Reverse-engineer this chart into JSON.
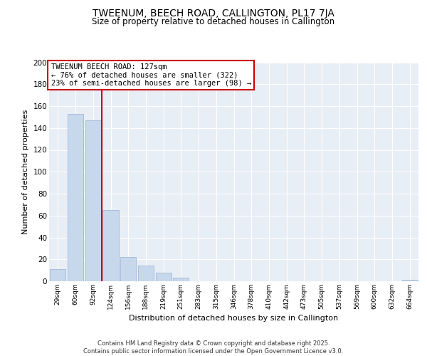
{
  "title": "TWEENUM, BEECH ROAD, CALLINGTON, PL17 7JA",
  "subtitle": "Size of property relative to detached houses in Callington",
  "xlabel": "Distribution of detached houses by size in Callington",
  "ylabel": "Number of detached properties",
  "categories": [
    "29sqm",
    "60sqm",
    "92sqm",
    "124sqm",
    "156sqm",
    "188sqm",
    "219sqm",
    "251sqm",
    "283sqm",
    "315sqm",
    "346sqm",
    "378sqm",
    "410sqm",
    "442sqm",
    "473sqm",
    "505sqm",
    "537sqm",
    "569sqm",
    "600sqm",
    "632sqm",
    "664sqm"
  ],
  "values": [
    11,
    153,
    147,
    65,
    22,
    14,
    8,
    3,
    0,
    0,
    0,
    0,
    0,
    0,
    0,
    0,
    0,
    0,
    0,
    0,
    1
  ],
  "bar_color": "#c8d8ec",
  "bar_edge_color": "#a0b8d8",
  "vline_color": "#cc0000",
  "vline_x_index": 2.5,
  "annotation_title": "TWEENUM BEECH ROAD: 127sqm",
  "annotation_line1": "← 76% of detached houses are smaller (322)",
  "annotation_line2": "23% of semi-detached houses are larger (98) →",
  "annotation_box_facecolor": "#ffffff",
  "annotation_box_edgecolor": "#cc0000",
  "ylim": [
    0,
    200
  ],
  "yticks": [
    0,
    20,
    40,
    60,
    80,
    100,
    120,
    140,
    160,
    180,
    200
  ],
  "plot_bg_color": "#e8eef5",
  "fig_bg_color": "#ffffff",
  "grid_color": "#ffffff",
  "footer_line1": "Contains HM Land Registry data © Crown copyright and database right 2025.",
  "footer_line2": "Contains public sector information licensed under the Open Government Licence v3.0."
}
